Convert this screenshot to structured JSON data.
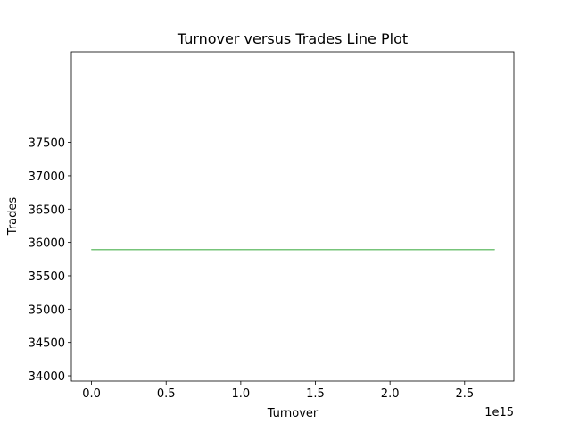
{
  "chart_data": {
    "type": "line",
    "title": "Turnover versus Trades Line Plot",
    "xlabel": "Turnover",
    "ylabel": "Trades",
    "x_offset_label": "1e15",
    "xlim": [
      -0.135,
      2.83
    ],
    "ylim": [
      33920,
      38860
    ],
    "x_ticks": [
      0.0,
      0.5,
      1.0,
      1.5,
      2.0,
      2.5
    ],
    "x_tick_labels": [
      "0.0",
      "0.5",
      "1.0",
      "1.5",
      "2.0",
      "2.5"
    ],
    "y_ticks": [
      34000,
      34500,
      35000,
      35500,
      36000,
      36500,
      37000,
      37500
    ],
    "y_tick_labels": [
      "34000",
      "34500",
      "35000",
      "35500",
      "36000",
      "36500",
      "37000",
      "37500"
    ],
    "grid": false,
    "series": [
      {
        "color": "#77c47a",
        "x": [
          0.0,
          0.02,
          0.05,
          0.1,
          0.3,
          0.5,
          1.0,
          1.5,
          2.0,
          2.5,
          2.7
        ],
        "y": [
          35890,
          35890,
          35890,
          35890,
          35890,
          35890,
          35890,
          35890,
          35890,
          35890,
          35890
        ]
      }
    ]
  }
}
